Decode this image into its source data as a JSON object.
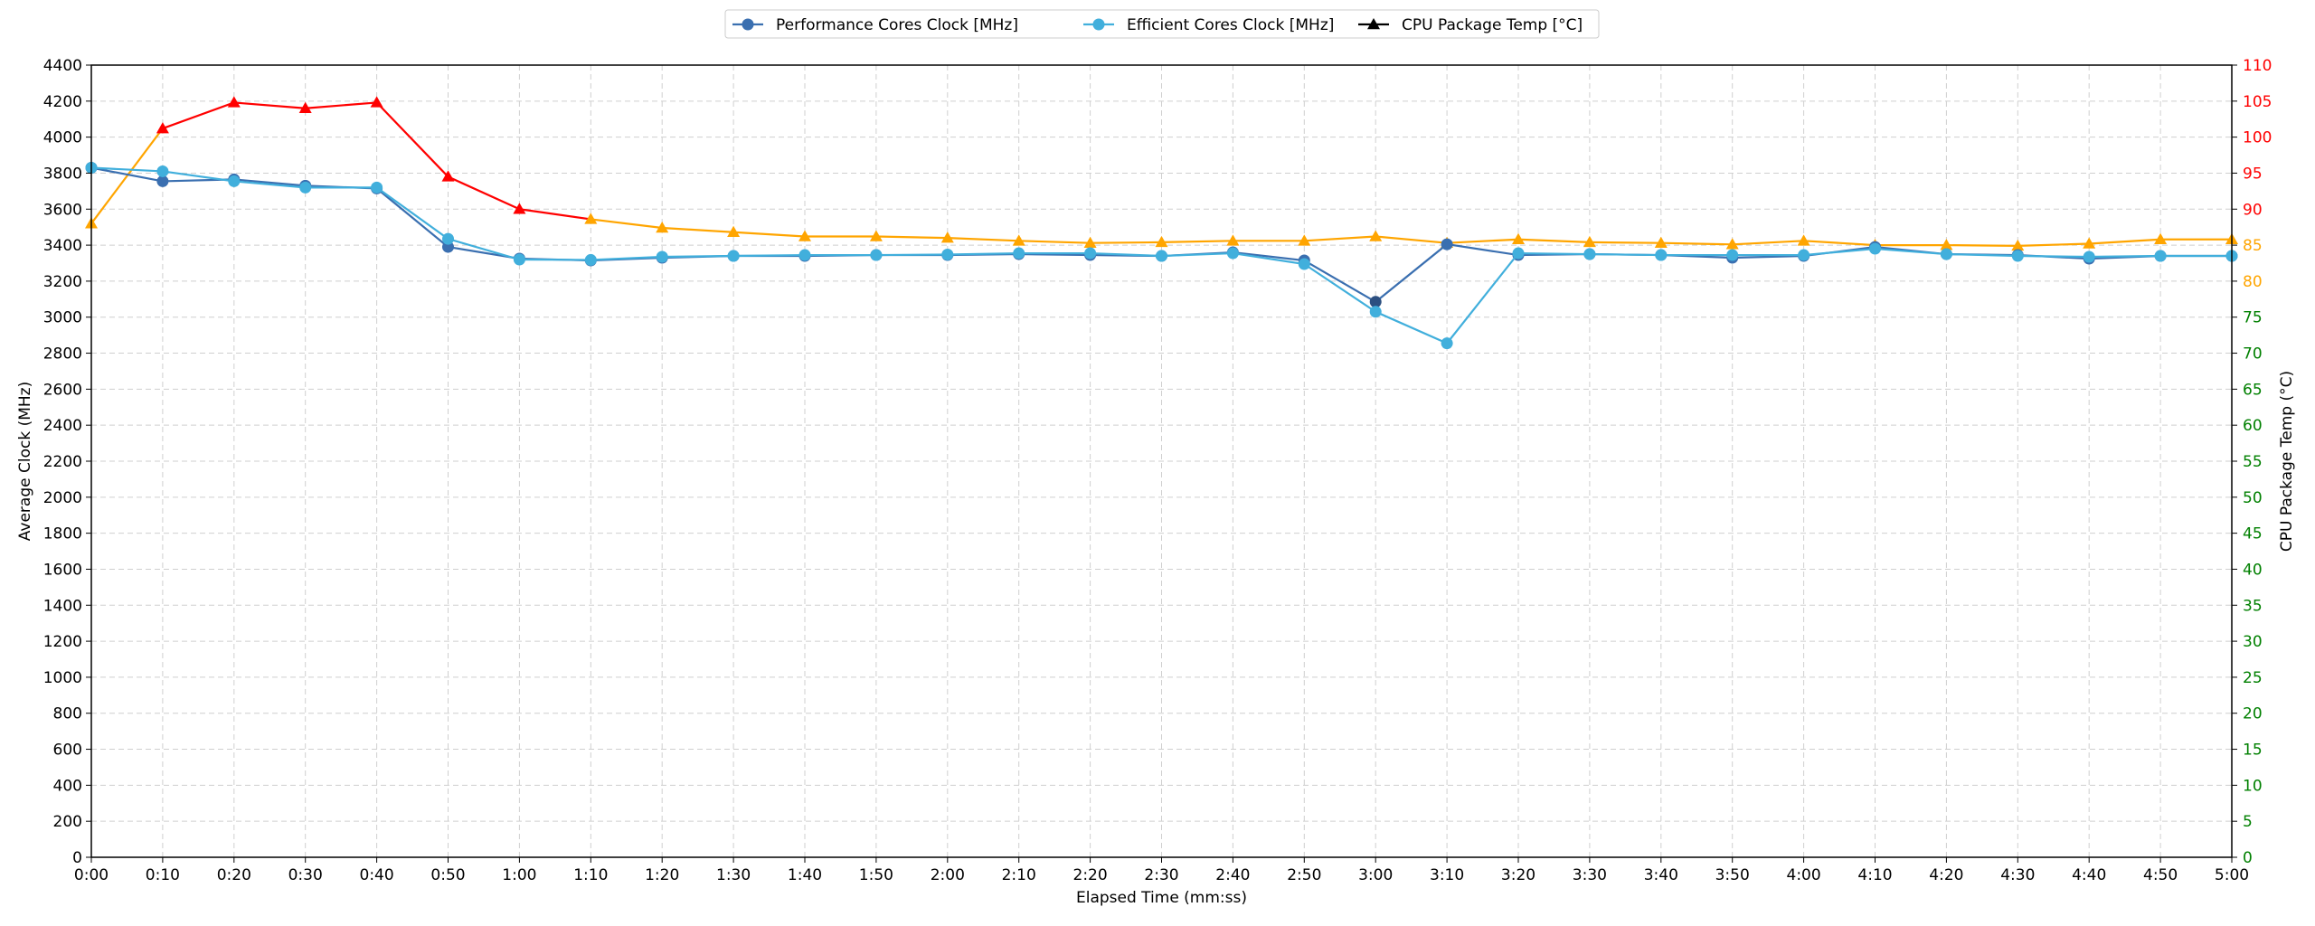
{
  "chart_data": {
    "type": "line",
    "title": "",
    "xlabel": "Elapsed Time (mm:ss)",
    "ylabel": "Average Clock (MHz)",
    "y2label": "CPU Package Temp (°C)",
    "x": [
      "0:00",
      "0:10",
      "0:20",
      "0:30",
      "0:40",
      "0:50",
      "1:00",
      "1:10",
      "1:20",
      "1:30",
      "1:40",
      "1:50",
      "2:00",
      "2:10",
      "2:20",
      "2:30",
      "2:40",
      "2:50",
      "3:00",
      "3:10",
      "3:20",
      "3:30",
      "3:40",
      "3:50",
      "4:00",
      "4:10",
      "4:20",
      "4:30",
      "4:40",
      "4:50",
      "5:00"
    ],
    "ylim": [
      0,
      4400
    ],
    "y_ticks": [
      0,
      200,
      400,
      600,
      800,
      1000,
      1200,
      1400,
      1600,
      1800,
      2000,
      2200,
      2400,
      2600,
      2800,
      3000,
      3200,
      3400,
      3600,
      3800,
      4000,
      4200,
      4400
    ],
    "y2lim": [
      0,
      110
    ],
    "y2_ticks": [
      0,
      5,
      10,
      15,
      20,
      25,
      30,
      35,
      40,
      45,
      50,
      55,
      60,
      65,
      70,
      75,
      80,
      85,
      90,
      95,
      100,
      105,
      110
    ],
    "y2_tick_colors": {
      "green_below": 80,
      "orange_from": 80,
      "red_from": 90
    },
    "grid": true,
    "legend_position": "top-center",
    "series": [
      {
        "name": "Performance Cores Clock [MHz]",
        "axis": "left",
        "color": "#3a6fb0",
        "marker": "circle",
        "values": [
          3830,
          3755,
          3765,
          3730,
          3715,
          3390,
          3325,
          3315,
          3330,
          3340,
          3340,
          3345,
          3345,
          3350,
          3345,
          3340,
          3360,
          3315,
          3085,
          3405,
          3345,
          3350,
          3345,
          3330,
          3340,
          3390,
          3350,
          3345,
          3325,
          3340,
          3340
        ]
      },
      {
        "name": "Efficient Cores Clock [MHz]",
        "axis": "left",
        "color": "#41afdc",
        "marker": "circle",
        "values": [
          3830,
          3810,
          3755,
          3720,
          3720,
          3435,
          3320,
          3318,
          3335,
          3340,
          3345,
          3345,
          3348,
          3355,
          3355,
          3340,
          3355,
          3295,
          3030,
          2855,
          3355,
          3350,
          3345,
          3345,
          3345,
          3380,
          3350,
          3340,
          3335,
          3340,
          3340
        ]
      },
      {
        "name": "CPU Package Temp [°C]",
        "axis": "right",
        "color": "#000000",
        "marker": "triangle",
        "segment_colors": {
          "red": "#ff0000",
          "orange": "#ffa500",
          "green": "#008000"
        },
        "values": [
          88,
          101.2,
          104.8,
          104,
          104.8,
          94.5,
          90,
          88.6,
          87.4,
          86.8,
          86.2,
          86.2,
          86,
          85.6,
          85.3,
          85.4,
          85.6,
          85.6,
          86.2,
          85.3,
          85.8,
          85.4,
          85.3,
          85.1,
          85.6,
          85,
          85,
          84.9,
          85.2,
          85.8,
          85.8
        ]
      }
    ]
  }
}
